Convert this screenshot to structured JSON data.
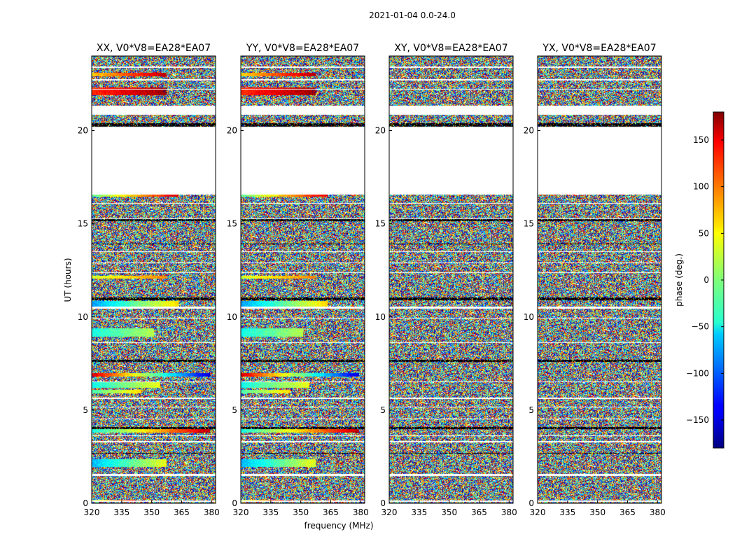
{
  "figure": {
    "suptitle": "2021-01-04 0.0-24.0"
  },
  "chart_data": {
    "type": "heatmap",
    "suptitle": "2021-01-04 0.0-24.0",
    "xlabel": "frequency (MHz)",
    "ylabel": "UT (hours)",
    "xlim": [
      320,
      382
    ],
    "ylim": [
      0,
      24
    ],
    "xticks": [
      "320",
      "335",
      "350",
      "365",
      "380"
    ],
    "yticks": [
      "0",
      "5",
      "10",
      "15",
      "20"
    ],
    "panels": [
      {
        "title": "XX, V0*V8=EA28*EA07",
        "structured": true
      },
      {
        "title": "YY, V0*V8=EA28*EA07",
        "structured": true
      },
      {
        "title": "XY, V0*V8=EA28*EA07",
        "structured": false
      },
      {
        "title": "YX, V0*V8=EA28*EA07",
        "structured": false
      }
    ],
    "colorbar": {
      "label": "phase (deg.)",
      "range": [
        -180,
        180
      ],
      "colormap": "jet",
      "ticks": [
        "150",
        "100",
        "50",
        "0",
        "−50",
        "−100",
        "−150"
      ],
      "tick_values": [
        150,
        100,
        50,
        0,
        -50,
        -100,
        -150
      ]
    },
    "gaps_hours": [
      [
        0.08,
        0.14
      ],
      [
        1.48,
        1.56
      ],
      [
        3.28,
        3.34
      ],
      [
        3.6,
        3.66
      ],
      [
        4.5,
        4.56
      ],
      [
        5.15,
        5.2
      ],
      [
        5.6,
        5.66
      ],
      [
        6.5,
        6.55
      ],
      [
        8.6,
        8.65
      ],
      [
        9.9,
        9.95
      ],
      [
        10.45,
        10.55
      ],
      [
        12.35,
        12.4
      ],
      [
        12.88,
        12.93
      ],
      [
        13.48,
        13.52
      ],
      [
        15.25,
        15.3
      ],
      [
        16.08,
        16.12
      ],
      [
        16.55,
        20.2
      ],
      [
        20.85,
        21.35
      ],
      [
        22.2,
        22.25
      ],
      [
        22.68,
        22.75
      ],
      [
        23.35,
        23.42
      ]
    ],
    "dark_bands_hours": [
      [
        20.2,
        20.4
      ],
      [
        10.9,
        11.05
      ],
      [
        15.15,
        15.25
      ],
      [
        7.6,
        7.7
      ],
      [
        4.0,
        4.1
      ],
      [
        2.65,
        2.7
      ],
      [
        13.9,
        13.95
      ]
    ],
    "coherent_bands_hours": [
      {
        "y0": 0.1,
        "y1": 0.2,
        "phase_lo": 20,
        "phase_hi": 140,
        "extent": 0.35
      },
      {
        "y0": 1.95,
        "y1": 2.35,
        "phase_lo": -70,
        "phase_hi": 40,
        "extent": 0.6
      },
      {
        "y0": 3.8,
        "y1": 4.05,
        "phase_lo": -40,
        "phase_hi": 160,
        "extent": 0.95
      },
      {
        "y0": 5.9,
        "y1": 6.1,
        "phase_lo": -20,
        "phase_hi": 60,
        "extent": 0.4
      },
      {
        "y0": 6.2,
        "y1": 6.5,
        "phase_lo": -40,
        "phase_hi": 40,
        "extent": 0.55
      },
      {
        "y0": 6.8,
        "y1": 7.0,
        "phase_lo": 150,
        "phase_hi": -150,
        "extent": 0.95
      },
      {
        "y0": 8.95,
        "y1": 9.4,
        "phase_lo": -40,
        "phase_hi": 20,
        "extent": 0.5
      },
      {
        "y0": 10.55,
        "y1": 10.85,
        "phase_lo": -80,
        "phase_hi": 60,
        "extent": 0.7
      },
      {
        "y0": 12.05,
        "y1": 12.2,
        "phase_lo": 30,
        "phase_hi": 90,
        "extent": 0.6
      },
      {
        "y0": 16.45,
        "y1": 16.55,
        "phase_lo": -10,
        "phase_hi": 150,
        "extent": 0.7
      },
      {
        "y0": 21.9,
        "y1": 22.3,
        "phase_lo": 120,
        "phase_hi": 170,
        "extent": 0.6
      },
      {
        "y0": 22.9,
        "y1": 23.1,
        "phase_lo": 60,
        "phase_hi": 160,
        "extent": 0.6
      }
    ]
  }
}
